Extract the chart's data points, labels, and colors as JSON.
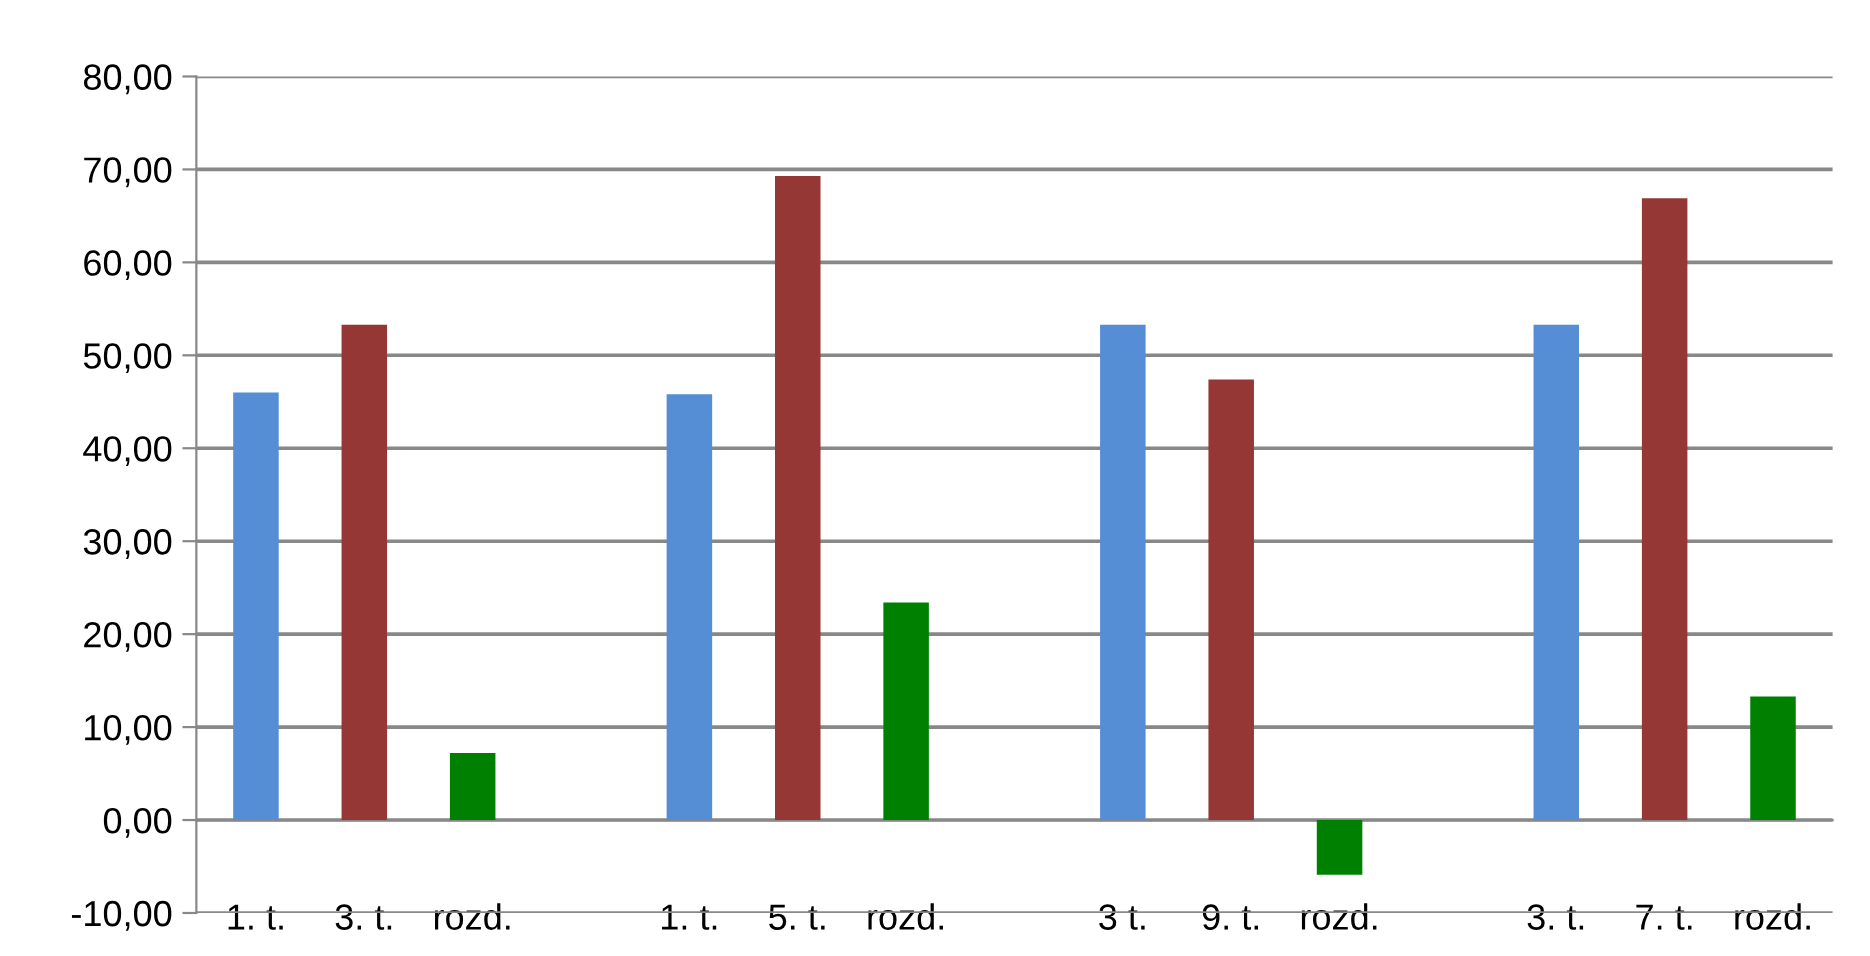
{
  "chart_data": {
    "type": "bar",
    "categories": [
      "1. t.",
      "3. t.",
      "rozd.",
      null,
      "1. t.",
      "5. t.",
      "rozd.",
      null,
      "3 t.",
      "9. t.",
      "rozd.",
      null,
      "3. t.",
      "7. t.",
      "rozd."
    ],
    "values": [
      46,
      53.3,
      7.2,
      null,
      45.8,
      69.3,
      23.4,
      null,
      53.3,
      47.4,
      -5.9,
      null,
      53.3,
      66.9,
      13.3
    ],
    "colors": [
      "#558ed5",
      "#953735",
      "#008000",
      null,
      "#558ed5",
      "#953735",
      "#008000",
      null,
      "#558ed5",
      "#953735",
      "#008000",
      null,
      "#558ed5",
      "#953735",
      "#008000"
    ],
    "ylim": [
      -10,
      80
    ],
    "yticks": [
      {
        "value": -10,
        "label": "-10,00"
      },
      {
        "value": 0,
        "label": "0,00"
      },
      {
        "value": 10,
        "label": "10,00"
      },
      {
        "value": 20,
        "label": "20,00"
      },
      {
        "value": 30,
        "label": "30,00"
      },
      {
        "value": 40,
        "label": "40,00"
      },
      {
        "value": 50,
        "label": "50,00"
      },
      {
        "value": 60,
        "label": "60,00"
      },
      {
        "value": 70,
        "label": "70,00"
      },
      {
        "value": 80,
        "label": "80,00"
      }
    ],
    "grid": "y"
  }
}
